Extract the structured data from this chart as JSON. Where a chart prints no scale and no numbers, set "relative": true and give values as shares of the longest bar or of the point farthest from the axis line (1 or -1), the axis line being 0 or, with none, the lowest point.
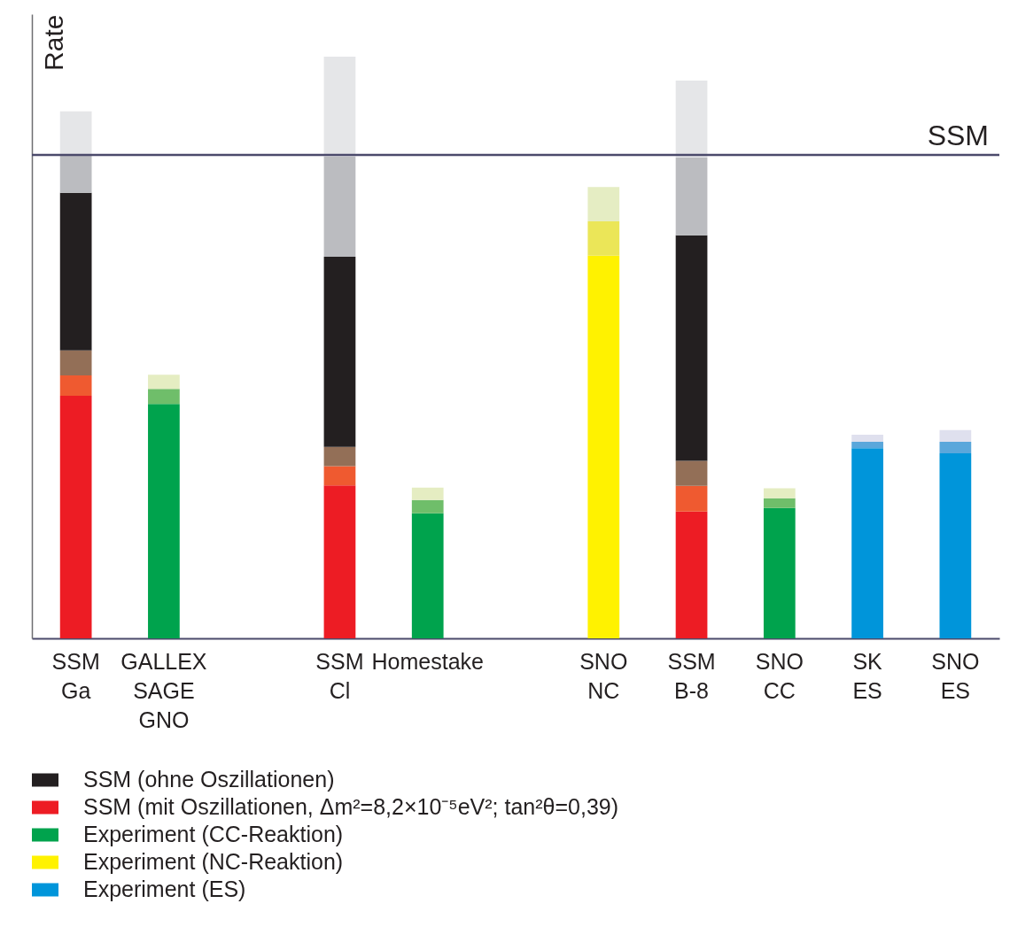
{
  "chart_data": {
    "type": "bar",
    "stacked": true,
    "relative": true,
    "ylabel": "Rate",
    "legend": "bottom",
    "grid": false,
    "categories": [
      "SSM\nGa",
      "GALLEX\nSAGE\nGNO",
      null,
      "SSM\nCl",
      "Homestake",
      null,
      "SNO\nNC",
      "SSM\nB-8",
      "SNO\nCC",
      "SK\nES",
      "SNO\nES"
    ],
    "series": [
      {
        "name": "SSM (mit Oszillationen, Δm²=8,2×10⁻⁵eV²; tan²θ=0,39)",
        "color": "#ed1c24",
        "values": [
          0.417,
          null,
          null,
          0.263,
          null,
          null,
          null,
          0.218,
          null,
          null,
          null
        ]
      },
      {
        "color": "#ef5a30",
        "values": [
          0.035,
          null,
          null,
          0.033,
          null,
          null,
          null,
          0.044,
          null,
          null,
          null
        ]
      },
      {
        "color": "#936f57",
        "values": [
          0.043,
          null,
          null,
          0.033,
          null,
          null,
          null,
          0.043,
          null,
          null,
          null
        ]
      },
      {
        "name": "SSM (ohne Oszillationen)",
        "color": "#231f20",
        "values": [
          0.271,
          null,
          null,
          0.327,
          null,
          null,
          null,
          0.388,
          null,
          null,
          null
        ]
      },
      {
        "color": "#bbbcc0",
        "values": [
          0.065,
          null,
          null,
          0.172,
          null,
          null,
          null,
          0.134,
          null,
          null,
          null
        ]
      },
      {
        "color": "#e5e6e8",
        "values": [
          0.075,
          null,
          null,
          0.172,
          null,
          null,
          null,
          0.132,
          null,
          null,
          null
        ]
      },
      {
        "name": "Experiment (CC-Reaktion)",
        "color": "#00a34d",
        "values": [
          null,
          0.403,
          null,
          null,
          0.215,
          null,
          null,
          null,
          0.224,
          null,
          null
        ]
      },
      {
        "color": "#6fbe6a",
        "values": [
          null,
          0.026,
          null,
          null,
          0.023,
          null,
          null,
          null,
          0.017,
          null,
          null
        ]
      },
      {
        "color": "#e5edc2",
        "values": [
          null,
          0.024,
          null,
          null,
          0.021,
          null,
          null,
          null,
          0.017,
          null,
          null
        ]
      },
      {
        "name": "Experiment (NC-Reaktion)",
        "color": "#fff200",
        "values": [
          null,
          null,
          null,
          null,
          null,
          null,
          0.658,
          null,
          null,
          null,
          null
        ]
      },
      {
        "color": "#ebe658",
        "values": [
          null,
          null,
          null,
          null,
          null,
          null,
          0.059,
          null,
          null,
          null,
          null
        ]
      },
      {
        "color": "#e5edc3",
        "values": [
          null,
          null,
          null,
          null,
          null,
          null,
          0.059,
          null,
          null,
          null,
          null
        ]
      },
      {
        "name": "Experiment (ES)",
        "color": "#0095da",
        "values": [
          null,
          null,
          null,
          null,
          null,
          null,
          null,
          null,
          null,
          0.327,
          0.318
        ]
      },
      {
        "color": "#5aa7db",
        "values": [
          null,
          null,
          null,
          null,
          null,
          null,
          null,
          null,
          null,
          0.011,
          0.02
        ]
      },
      {
        "color": "#dfe0ee",
        "values": [
          null,
          null,
          null,
          null,
          null,
          null,
          null,
          null,
          null,
          0.012,
          0.02
        ]
      }
    ],
    "ref_lines": [
      {
        "axis": "y",
        "value": 0.831,
        "label": "SSM",
        "color": "#4b4a6b"
      }
    ]
  }
}
